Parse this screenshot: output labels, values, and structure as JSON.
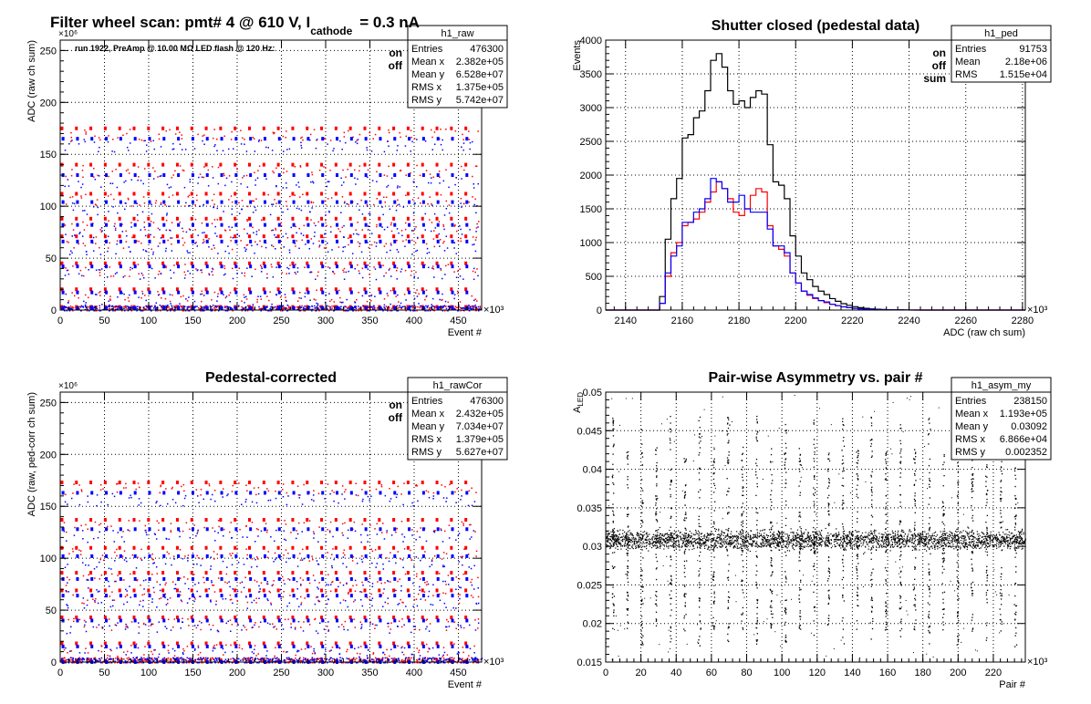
{
  "colors": {
    "on": "#ff0000",
    "off": "#0000ff",
    "sum": "#000000",
    "frame": "#000000",
    "grid": "#000000"
  },
  "header": {
    "title_main": "Filter wheel scan: pmt#   4 @   610 V, I",
    "title_sub": "cathode",
    "title_end": "= 0.3 nA"
  },
  "chart_data": [
    {
      "id": "raw",
      "type": "scatter",
      "title": "",
      "xlabel": "Event #",
      "ylabel": "ADC (raw ch sum)",
      "x_multiplier": "×10³",
      "y_multiplier": "×10⁶",
      "xlim": [
        0,
        476.3
      ],
      "ylim": [
        0,
        260
      ],
      "xticks": [
        0,
        50,
        100,
        150,
        200,
        250,
        300,
        350,
        400,
        450
      ],
      "yticks": [
        0,
        50,
        100,
        150,
        200,
        250
      ],
      "annotation": "run 1922, PreAmp @ 10.00 MΩ LED flash @  120 Hz:",
      "legend": {
        "placement": "top-right",
        "entries": [
          "on",
          "off"
        ]
      },
      "stats": {
        "name": "h1_raw",
        "rows": [
          [
            "Entries",
            "476300"
          ],
          [
            "Mean x",
            "2.382e+05"
          ],
          [
            "Mean y",
            "6.528e+07"
          ],
          [
            "RMS x",
            "1.375e+05"
          ],
          [
            "RMS y",
            "5.742e+07"
          ]
        ]
      },
      "period": 16.3,
      "series": [
        {
          "name": "on",
          "levels": [
            175,
            140,
            112,
            88,
            71,
            45,
            20,
            3
          ]
        },
        {
          "name": "off",
          "levels": [
            165,
            130,
            104,
            82,
            66,
            42,
            17,
            2
          ]
        }
      ]
    },
    {
      "id": "ped",
      "type": "line",
      "title": "Shutter closed (pedestal data)",
      "xlabel": "ADC (raw ch sum)",
      "ylabel": "Events",
      "x_multiplier": "×10³",
      "xlim": [
        2133,
        2281
      ],
      "ylim": [
        0,
        4000
      ],
      "xticks": [
        2140,
        2160,
        2180,
        2200,
        2220,
        2240,
        2260,
        2280
      ],
      "yticks": [
        0,
        500,
        1000,
        1500,
        2000,
        2500,
        3000,
        3500,
        4000
      ],
      "legend": {
        "placement": "top-right",
        "entries": [
          "on",
          "off",
          "sum"
        ]
      },
      "stats": {
        "name": "h1_ped",
        "rows": [
          [
            "Entries",
            "91753"
          ],
          [
            "Mean",
            "2.18e+06"
          ],
          [
            "RMS",
            "1.515e+04"
          ]
        ]
      },
      "bin_start": 2150,
      "bin_width": 2,
      "series": [
        {
          "name": "sum",
          "values": [
            0,
            200,
            1050,
            1650,
            1950,
            2550,
            2600,
            2850,
            2950,
            3250,
            3700,
            3800,
            3600,
            3250,
            3050,
            3100,
            3000,
            3150,
            3250,
            3200,
            2450,
            1900,
            1850,
            1650,
            1100,
            800,
            550,
            450,
            350,
            280,
            230,
            170,
            130,
            95,
            70,
            50,
            35,
            25,
            18,
            12,
            8,
            6,
            4,
            3,
            2,
            1,
            1,
            0
          ]
        },
        {
          "name": "on",
          "values": [
            0,
            100,
            500,
            850,
            1000,
            1250,
            1300,
            1350,
            1450,
            1600,
            1750,
            1900,
            1800,
            1650,
            1450,
            1400,
            1500,
            1700,
            1800,
            1750,
            1250,
            950,
            900,
            800,
            550,
            400,
            280,
            220,
            170,
            140,
            110,
            85,
            65,
            48,
            35,
            25,
            18,
            12,
            9,
            6,
            4,
            3,
            2,
            1,
            1,
            0,
            0,
            0
          ]
        },
        {
          "name": "off",
          "values": [
            0,
            100,
            550,
            800,
            950,
            1300,
            1300,
            1450,
            1500,
            1650,
            1950,
            1900,
            1800,
            1600,
            1600,
            1700,
            1500,
            1450,
            1450,
            1450,
            1200,
            950,
            950,
            850,
            550,
            400,
            280,
            230,
            180,
            140,
            120,
            85,
            65,
            47,
            35,
            25,
            17,
            13,
            9,
            6,
            4,
            3,
            2,
            2,
            1,
            1,
            0,
            0
          ]
        }
      ]
    },
    {
      "id": "rawCor",
      "type": "scatter",
      "title": "Pedestal-corrected",
      "xlabel": "Event #",
      "ylabel": "ADC (raw, ped-corr ch sum)",
      "x_multiplier": "×10³",
      "y_multiplier": "×10⁶",
      "xlim": [
        0,
        476.3
      ],
      "ylim": [
        0,
        260
      ],
      "xticks": [
        0,
        50,
        100,
        150,
        200,
        250,
        300,
        350,
        400,
        450
      ],
      "yticks": [
        0,
        50,
        100,
        150,
        200,
        250
      ],
      "legend": {
        "placement": "top-right",
        "entries": [
          "on",
          "off"
        ]
      },
      "stats": {
        "name": "h1_rawCor",
        "rows": [
          [
            "Entries",
            "476300"
          ],
          [
            "Mean x",
            "2.432e+05"
          ],
          [
            "Mean y",
            "7.034e+07"
          ],
          [
            "RMS x",
            "1.379e+05"
          ],
          [
            "RMS y",
            "5.627e+07"
          ]
        ]
      },
      "period": 16.3,
      "series": [
        {
          "name": "on",
          "levels": [
            173,
            137,
            110,
            86,
            69,
            43,
            18,
            1
          ]
        },
        {
          "name": "off",
          "levels": [
            163,
            128,
            102,
            80,
            64,
            40,
            15,
            0
          ]
        }
      ]
    },
    {
      "id": "asym",
      "type": "scatter",
      "title": "Pair-wise Asymmetry vs. pair #",
      "xlabel": "Pair #",
      "ylabel": "A",
      "ylabel_sub": "LED",
      "x_multiplier": "×10³",
      "xlim": [
        0,
        238.15
      ],
      "ylim": [
        0.015,
        0.05
      ],
      "xticks": [
        0,
        20,
        40,
        60,
        80,
        100,
        120,
        140,
        160,
        180,
        200,
        220
      ],
      "yticks": [
        0.015,
        0.02,
        0.025,
        0.03,
        0.035,
        0.04,
        0.045,
        0.05
      ],
      "stats": {
        "name": "h1_asym_my",
        "rows": [
          [
            "Entries",
            "238150"
          ],
          [
            "Mean x",
            "1.193e+05"
          ],
          [
            "Mean y",
            "0.03092"
          ],
          [
            "RMS x",
            "6.866e+04"
          ],
          [
            "RMS y",
            "0.002352"
          ]
        ]
      },
      "center": 0.03092,
      "spread": 0.0012,
      "spike_period": 8.15,
      "spike_span": [
        0.017,
        0.047
      ]
    }
  ]
}
